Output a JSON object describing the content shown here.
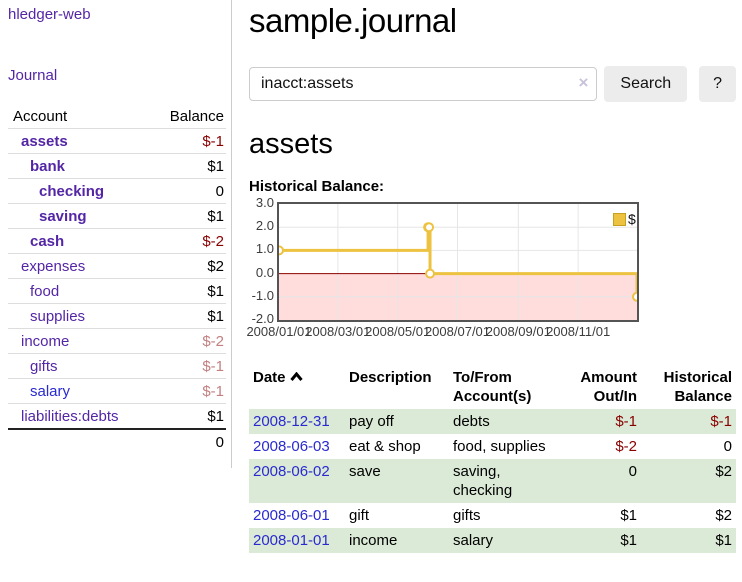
{
  "app": {
    "title": "hledger-web",
    "nav_journal": "Journal"
  },
  "sidebar": {
    "columns": {
      "account": "Account",
      "balance": "Balance"
    },
    "accounts": [
      {
        "name": "assets",
        "indent": 0,
        "bold": true,
        "link_style": "purple",
        "balance": "$-1",
        "balance_style": "neg"
      },
      {
        "name": "bank",
        "indent": 1,
        "bold": true,
        "link_style": "purple",
        "balance": "$1",
        "balance_style": "pos"
      },
      {
        "name": "checking",
        "indent": 2,
        "bold": true,
        "link_style": "purple",
        "balance": "0",
        "balance_style": "pos"
      },
      {
        "name": "saving",
        "indent": 2,
        "bold": true,
        "link_style": "purple",
        "balance": "$1",
        "balance_style": "pos"
      },
      {
        "name": "cash",
        "indent": 1,
        "bold": true,
        "link_style": "purple",
        "balance": "$-2",
        "balance_style": "neg"
      },
      {
        "name": "expenses",
        "indent": 0,
        "bold": false,
        "link_style": "purple",
        "balance": "$2",
        "balance_style": "pos"
      },
      {
        "name": "food",
        "indent": 1,
        "bold": false,
        "link_style": "purple",
        "balance": "$1",
        "balance_style": "pos"
      },
      {
        "name": "supplies",
        "indent": 1,
        "bold": false,
        "link_style": "purple",
        "balance": "$1",
        "balance_style": "pos"
      },
      {
        "name": "income",
        "indent": 0,
        "bold": false,
        "link_style": "purple",
        "balance": "$-2",
        "balance_style": "dim"
      },
      {
        "name": "gifts",
        "indent": 1,
        "bold": false,
        "link_style": "purple",
        "balance": "$-1",
        "balance_style": "dim"
      },
      {
        "name": "salary",
        "indent": 1,
        "bold": false,
        "link_style": "blue",
        "balance": "$-1",
        "balance_style": "dim"
      },
      {
        "name": "liabilities:debts",
        "indent": 0,
        "bold": false,
        "link_style": "purple",
        "balance": "$1",
        "balance_style": "pos"
      }
    ],
    "total": "0"
  },
  "header": {
    "title": "sample.journal"
  },
  "search": {
    "value": "inacct:assets",
    "clear_icon": "×",
    "button_label": "Search",
    "help_label": "?"
  },
  "account_page": {
    "heading": "assets",
    "chart_title": "Historical Balance:"
  },
  "chart_data": {
    "type": "line",
    "title": "Historical Balance:",
    "ylim": [
      -2,
      3
    ],
    "yticks": [
      3.0,
      2.0,
      1.0,
      0.0,
      -1.0,
      -2.0
    ],
    "ytick_labels": [
      "3.0",
      "2.0",
      "1.0",
      "0.0",
      "-1.0",
      "-2.0"
    ],
    "xtick_labels": [
      "2008/01/01",
      "2008/03/01",
      "2008/05/01",
      "2008/07/01",
      "2008/09/01",
      "2008/11/01"
    ],
    "xtick_days": [
      0,
      60,
      121,
      182,
      244,
      305
    ],
    "x_range_days": 365,
    "grid": true,
    "legend": {
      "label": "$",
      "position": "top-right"
    },
    "colors": {
      "line": "#EDC240",
      "point_fill": "#ffffff",
      "negative_fill": "#ffdddd",
      "zero_line": "#8b0000",
      "gridline": "#e6e6e6",
      "border": "#545454",
      "legend_swatch_border": "#c5a021"
    },
    "series": [
      {
        "name": "$",
        "step": true,
        "points": [
          {
            "date": "2008-01-01",
            "day": 0,
            "value": 1
          },
          {
            "date": "2008-06-01",
            "day": 152,
            "value": 2
          },
          {
            "date": "2008-06-02",
            "day": 153,
            "value": 2
          },
          {
            "date": "2008-06-03",
            "day": 154,
            "value": 0
          },
          {
            "date": "2008-12-31",
            "day": 365,
            "value": -1
          }
        ]
      }
    ]
  },
  "register": {
    "columns": [
      "Date",
      "Description",
      "To/From\nAccount(s)",
      "Amount\nOut/In",
      "Historical\nBalance"
    ],
    "sorted_by": "Date ascending",
    "rows": [
      {
        "date": "2008-12-31",
        "description": "pay off",
        "accounts": "debts",
        "amount": "$-1",
        "amount_neg": true,
        "balance": "$-1",
        "balance_neg": true,
        "shade": true
      },
      {
        "date": "2008-06-03",
        "description": "eat & shop",
        "accounts": "food, supplies",
        "amount": "$-2",
        "amount_neg": true,
        "balance": "0",
        "balance_neg": false,
        "shade": false
      },
      {
        "date": "2008-06-02",
        "description": "save",
        "accounts": "saving,\nchecking",
        "amount": "0",
        "amount_neg": false,
        "balance": "$2",
        "balance_neg": false,
        "shade": true
      },
      {
        "date": "2008-06-01",
        "description": "gift",
        "accounts": "gifts",
        "amount": "$1",
        "amount_neg": false,
        "balance": "$2",
        "balance_neg": false,
        "shade": false
      },
      {
        "date": "2008-01-01",
        "description": "income",
        "accounts": "salary",
        "amount": "$1",
        "amount_neg": false,
        "balance": "$1",
        "balance_neg": false,
        "shade": true
      }
    ]
  }
}
